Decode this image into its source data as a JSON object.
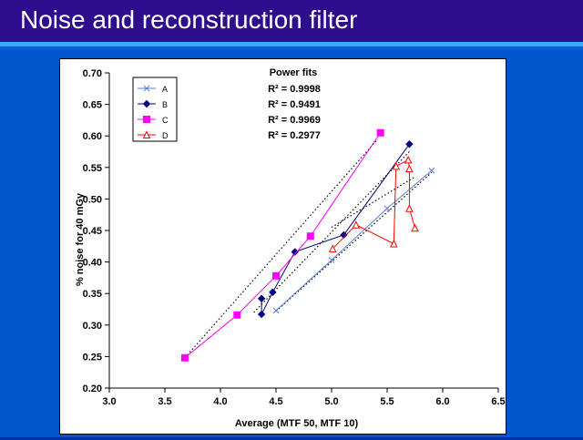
{
  "slide": {
    "title": "Noise and reconstruction filter",
    "colors": {
      "header": "#2e0e8c",
      "background": "#0055cc",
      "stripe": "#3aa8ff",
      "title_text": "#ffffff"
    }
  },
  "chart_data": {
    "type": "scatter",
    "xlabel": "Average (MTF 50, MTF 10)",
    "ylabel": "% noise for 40 mGy",
    "xlim": [
      3.0,
      6.5
    ],
    "ylim": [
      0.2,
      0.7
    ],
    "x_ticks": [
      "3.0",
      "3.5",
      "4.0",
      "4.5",
      "5.0",
      "5.5",
      "6.0",
      "6.5"
    ],
    "y_ticks": [
      "0.20",
      "0.25",
      "0.30",
      "0.35",
      "0.40",
      "0.45",
      "0.50",
      "0.55",
      "0.60",
      "0.65",
      "0.70"
    ],
    "grid": false,
    "legend_position": "top-left",
    "series": [
      {
        "name": "A",
        "color": "#5b7fd6",
        "marker": "x",
        "points": [
          [
            4.5,
            0.323
          ],
          [
            5.0,
            0.403
          ],
          [
            5.5,
            0.485
          ],
          [
            5.9,
            0.545
          ]
        ],
        "fit": [
          [
            4.5,
            0.322
          ],
          [
            5.9,
            0.542
          ]
        ]
      },
      {
        "name": "B",
        "color": "#000080",
        "marker": "diamond",
        "points": [
          [
            4.37,
            0.342
          ],
          [
            4.37,
            0.317
          ],
          [
            4.47,
            0.352
          ],
          [
            4.67,
            0.416
          ],
          [
            5.11,
            0.443
          ],
          [
            5.7,
            0.587
          ]
        ],
        "fit": [
          [
            4.3,
            0.32
          ],
          [
            5.7,
            0.575
          ]
        ]
      },
      {
        "name": "C",
        "color": "#ff00ff",
        "marker": "square",
        "points": [
          [
            3.68,
            0.248
          ],
          [
            4.15,
            0.316
          ],
          [
            4.5,
            0.378
          ],
          [
            4.81,
            0.441
          ],
          [
            5.44,
            0.605
          ]
        ],
        "fit": [
          [
            3.68,
            0.248
          ],
          [
            5.4,
            0.592
          ]
        ]
      },
      {
        "name": "D",
        "color": "#ff0000",
        "marker": "triangle",
        "points": [
          [
            5.01,
            0.421
          ],
          [
            5.22,
            0.459
          ],
          [
            5.56,
            0.429
          ],
          [
            5.58,
            0.552
          ],
          [
            5.69,
            0.562
          ],
          [
            5.7,
            0.548
          ],
          [
            5.7,
            0.485
          ],
          [
            5.75,
            0.454
          ]
        ],
        "fit": [
          [
            5.0,
            0.455
          ],
          [
            5.75,
            0.535
          ]
        ]
      }
    ],
    "annotation": {
      "title": "Power fits",
      "lines": [
        "R² = 0.9998",
        "R² = 0.9491",
        "R² = 0.9969",
        "R² = 0.2977"
      ]
    }
  }
}
